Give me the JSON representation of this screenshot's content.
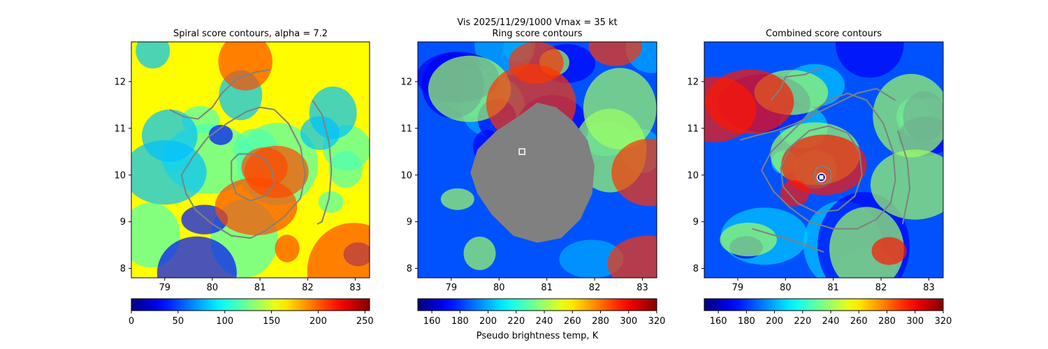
{
  "figure": {
    "suptitle_line1": "Vis  2025/11/29/1000    Vmax = 35 kt",
    "colorbar_label": "Pseudo brightness temp, K"
  },
  "chart_data": [
    {
      "type": "heatmap",
      "title": "Spiral score contours, alpha =  7.2",
      "xlim": [
        78.3,
        83.3
      ],
      "ylim": [
        7.8,
        12.85
      ],
      "xticks": [
        "79",
        "80",
        "81",
        "82",
        "83"
      ],
      "yticks": [
        "8",
        "9",
        "10",
        "11",
        "12"
      ],
      "colormap": "jet_r",
      "colorbar": {
        "min": 0,
        "max": 255,
        "ticks": [
          "0",
          "50",
          "100",
          "150",
          "200",
          "250"
        ]
      },
      "contours": [
        {
          "color": "#808080",
          "points": [
            [
              80.4,
              10.3
            ],
            [
              80.55,
              10.45
            ],
            [
              80.8,
              10.45
            ],
            [
              81.1,
              10.35
            ],
            [
              81.25,
              10.1
            ],
            [
              81.3,
              9.8
            ],
            [
              81.1,
              9.55
            ],
            [
              80.8,
              9.45
            ],
            [
              80.5,
              9.6
            ],
            [
              80.4,
              9.9
            ],
            [
              80.4,
              10.3
            ]
          ]
        },
        {
          "color": "#808080",
          "points": [
            [
              79.35,
              10.0
            ],
            [
              79.6,
              10.4
            ],
            [
              79.9,
              10.8
            ],
            [
              80.3,
              11.1
            ],
            [
              80.7,
              11.35
            ],
            [
              81.0,
              11.45
            ],
            [
              81.3,
              11.4
            ],
            [
              81.6,
              11.1
            ],
            [
              81.85,
              10.6
            ],
            [
              81.95,
              10.0
            ],
            [
              81.85,
              9.5
            ],
            [
              81.5,
              9.1
            ],
            [
              81.1,
              8.8
            ],
            [
              80.8,
              8.65
            ],
            [
              80.4,
              8.7
            ],
            [
              80.0,
              8.95
            ],
            [
              79.65,
              9.25
            ],
            [
              79.45,
              9.6
            ],
            [
              79.35,
              10.0
            ]
          ]
        },
        {
          "color": "#808080",
          "points": [
            [
              79.1,
              11.4
            ],
            [
              79.4,
              11.25
            ],
            [
              79.7,
              11.2
            ],
            [
              80.0,
              11.45
            ],
            [
              80.2,
              11.75
            ],
            [
              80.5,
              12.05
            ],
            [
              80.9,
              12.2
            ],
            [
              81.2,
              12.25
            ]
          ]
        },
        {
          "color": "#808080",
          "points": [
            [
              82.1,
              11.6
            ],
            [
              82.3,
              11.3
            ],
            [
              82.45,
              10.7
            ],
            [
              82.5,
              10.1
            ],
            [
              82.45,
              9.5
            ],
            [
              82.3,
              9.0
            ],
            [
              82.2,
              8.95
            ]
          ]
        }
      ],
      "bands": [
        {
          "value": 160,
          "count": 6
        },
        {
          "value": 115,
          "count": 10
        },
        {
          "value": 80,
          "count": 6
        },
        {
          "value": 35,
          "count": 4
        },
        {
          "value": 205,
          "count": 6
        }
      ]
    },
    {
      "type": "heatmap",
      "title": "Ring score contours",
      "xlim": [
        78.3,
        83.3
      ],
      "ylim": [
        7.8,
        12.85
      ],
      "xticks": [
        "79",
        "80",
        "81",
        "82",
        "83"
      ],
      "yticks": [
        "8",
        "9",
        "10",
        "11",
        "12"
      ],
      "colormap": "jet_r",
      "colorbar": {
        "min": 150,
        "max": 320,
        "ticks": [
          "160",
          "180",
          "200",
          "220",
          "240",
          "260",
          "280",
          "300",
          "320"
        ]
      },
      "masked_region": {
        "color": "#808080",
        "points": [
          [
            79.4,
            10.05
          ],
          [
            79.55,
            10.55
          ],
          [
            79.95,
            10.95
          ],
          [
            80.4,
            11.25
          ],
          [
            80.8,
            11.55
          ],
          [
            81.2,
            11.45
          ],
          [
            81.55,
            11.15
          ],
          [
            81.85,
            10.75
          ],
          [
            82.0,
            10.2
          ],
          [
            81.95,
            9.6
          ],
          [
            81.7,
            9.05
          ],
          [
            81.3,
            8.65
          ],
          [
            80.8,
            8.55
          ],
          [
            80.3,
            8.7
          ],
          [
            79.85,
            9.15
          ],
          [
            79.55,
            9.6
          ],
          [
            79.4,
            10.05
          ]
        ]
      },
      "marker": {
        "x": 80.48,
        "y": 10.5,
        "shape": "square",
        "color": "#ffffff"
      },
      "bands": [
        {
          "value": 185,
          "count": 8
        },
        {
          "value": 200,
          "count": 10
        },
        {
          "value": 170,
          "count": 6
        },
        {
          "value": 240,
          "count": 6
        },
        {
          "value": 290,
          "count": 5
        }
      ]
    },
    {
      "type": "heatmap",
      "title": "Combined score contours",
      "xlim": [
        78.3,
        83.3
      ],
      "ylim": [
        7.8,
        12.85
      ],
      "xticks": [
        "79",
        "80",
        "81",
        "82",
        "83"
      ],
      "yticks": [
        "8",
        "9",
        "10",
        "11",
        "12"
      ],
      "colormap": "jet_r",
      "colorbar": {
        "min": 150,
        "max": 320,
        "ticks": [
          "160",
          "180",
          "200",
          "220",
          "240",
          "260",
          "280",
          "300",
          "320"
        ]
      },
      "contours": [
        {
          "color": "#808080",
          "points": [
            [
              80.6,
              10.0
            ],
            [
              80.65,
              10.15
            ],
            [
              80.8,
              10.2
            ],
            [
              80.95,
              10.1
            ],
            [
              80.95,
              9.9
            ],
            [
              80.8,
              9.8
            ],
            [
              80.65,
              9.85
            ],
            [
              80.6,
              10.0
            ]
          ]
        },
        {
          "color": "#808080",
          "points": [
            [
              79.9,
              10.15
            ],
            [
              80.1,
              10.6
            ],
            [
              80.5,
              10.95
            ],
            [
              80.9,
              11.05
            ],
            [
              81.3,
              10.9
            ],
            [
              81.55,
              10.5
            ],
            [
              81.6,
              10.0
            ],
            [
              81.45,
              9.55
            ],
            [
              81.1,
              9.25
            ],
            [
              80.65,
              9.2
            ],
            [
              80.25,
              9.4
            ],
            [
              79.95,
              9.75
            ],
            [
              79.9,
              10.15
            ]
          ]
        },
        {
          "color": "#808080",
          "points": [
            [
              79.5,
              10.1
            ],
            [
              79.7,
              10.5
            ],
            [
              80.1,
              10.9
            ],
            [
              80.5,
              11.3
            ],
            [
              80.9,
              11.6
            ],
            [
              81.3,
              11.75
            ],
            [
              81.7,
              11.6
            ],
            [
              82.05,
              11.1
            ],
            [
              82.25,
              10.5
            ],
            [
              82.3,
              9.9
            ],
            [
              82.2,
              9.4
            ],
            [
              81.9,
              9.05
            ],
            [
              81.5,
              8.85
            ],
            [
              81.0,
              8.85
            ],
            [
              80.5,
              9.0
            ],
            [
              80.1,
              9.3
            ],
            [
              79.75,
              9.65
            ],
            [
              79.5,
              10.1
            ]
          ]
        },
        {
          "color": "#808080",
          "points": [
            [
              79.05,
              10.75
            ],
            [
              79.4,
              10.85
            ],
            [
              79.8,
              10.95
            ],
            [
              80.2,
              11.1
            ],
            [
              80.6,
              11.3
            ],
            [
              81.0,
              11.5
            ],
            [
              81.5,
              11.75
            ],
            [
              81.9,
              11.85
            ],
            [
              82.3,
              11.6
            ]
          ]
        },
        {
          "color": "#808080",
          "points": [
            [
              79.7,
              11.6
            ],
            [
              79.9,
              11.85
            ],
            [
              80.0,
              12.1
            ],
            [
              80.4,
              12.15
            ],
            [
              80.75,
              12.3
            ]
          ]
        },
        {
          "color": "#808080",
          "points": [
            [
              79.3,
              8.85
            ],
            [
              79.8,
              8.7
            ],
            [
              80.3,
              8.55
            ],
            [
              80.8,
              8.35
            ]
          ]
        },
        {
          "color": "#808080",
          "points": [
            [
              82.35,
              10.95
            ],
            [
              82.55,
              10.3
            ],
            [
              82.6,
              9.7
            ],
            [
              82.5,
              9.2
            ],
            [
              82.45,
              8.95
            ]
          ]
        }
      ],
      "marker": {
        "x": 80.75,
        "y": 9.95,
        "shape": "square-in-circle",
        "color": "#ffffff"
      },
      "bands": [
        {
          "value": 185,
          "count": 8
        },
        {
          "value": 205,
          "count": 10
        },
        {
          "value": 170,
          "count": 6
        },
        {
          "value": 240,
          "count": 6
        },
        {
          "value": 295,
          "count": 5
        }
      ]
    }
  ]
}
